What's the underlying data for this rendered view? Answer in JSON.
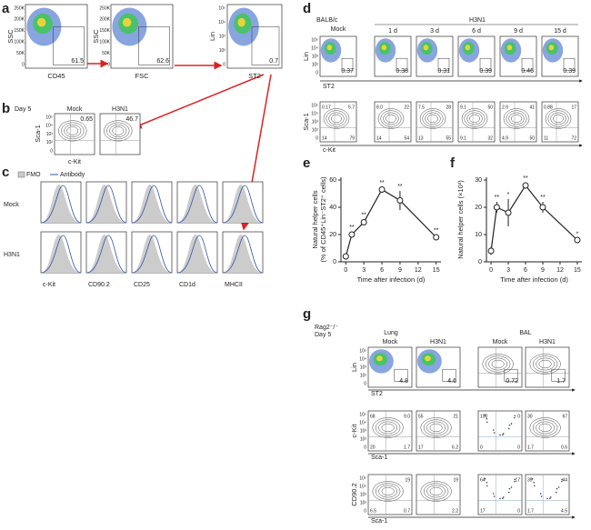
{
  "panel_letters": [
    "a",
    "b",
    "c",
    "d",
    "e",
    "f",
    "g"
  ],
  "a": {
    "ticks": [
      "250K",
      "200K",
      "150K",
      "100K",
      "50K",
      "0"
    ],
    "log_ticks": [
      "10⁵",
      "10⁴",
      "10³",
      "10²",
      "0"
    ],
    "plots": [
      {
        "y_label": "SSC",
        "x_label": "CD45",
        "gate": "61.5"
      },
      {
        "y_label": "SSC",
        "x_label": "FSC",
        "gate": "62.6"
      },
      {
        "y_label": "Lin",
        "x_label": "ST2",
        "gate": "0.7"
      }
    ]
  },
  "b": {
    "day": "Day 5",
    "y_label": "Sca-1",
    "x_label": "c-Kit",
    "plots": [
      {
        "title": "Mock",
        "gate": "0.65"
      },
      {
        "title": "H3N1",
        "gate": "46.7"
      }
    ]
  },
  "c": {
    "legend": [
      "FMO",
      "Antibody"
    ],
    "rows": [
      "Mock",
      "H3N1"
    ],
    "columns": [
      "c-Kit",
      "CD90.2",
      "CD25",
      "CD1d",
      "MHCII"
    ]
  },
  "d": {
    "strain": "BALB/c",
    "groups": [
      "Mock",
      "H3N1"
    ],
    "times": [
      "1 d",
      "3 d",
      "6 d",
      "9 d",
      "15 d"
    ],
    "row1": {
      "y_label": "Lin",
      "x_label": "ST2",
      "gates": [
        "0.37",
        "0.38",
        "0.31",
        "0.39",
        "0.46",
        "0.39"
      ]
    },
    "row2": {
      "y_label": "Sca-1",
      "x_label": "c-Kit",
      "quadrants": [
        [
          "0.17",
          "5.7",
          "14",
          "79"
        ],
        [
          "8.0",
          "22",
          "14",
          "54"
        ],
        [
          "7.5",
          "28",
          "13",
          "55"
        ],
        [
          "9.1",
          "50",
          "9.1",
          "32"
        ],
        [
          "2.9",
          "41",
          "4.9",
          "50"
        ],
        [
          "0.88",
          "17",
          "11",
          "72"
        ]
      ]
    }
  },
  "chart_data": [
    {
      "type": "line",
      "x_label": "Time after infection (d)",
      "y_label": [
        "Natural helper cells",
        "(% of CD45⁺Lin⁻ST2⁺ cells)"
      ],
      "x": [
        0,
        1,
        3,
        6,
        9,
        15
      ],
      "values": [
        4,
        20,
        29,
        53,
        45,
        18
      ],
      "errors": [
        1,
        2,
        2,
        1.5,
        7,
        1.5
      ],
      "significance": [
        null,
        "**",
        "**",
        "**",
        "**",
        "**"
      ],
      "xlim": [
        -0.8,
        15.8
      ],
      "xticks": [
        0,
        3,
        6,
        9,
        12,
        15
      ],
      "ylim": [
        0,
        62
      ],
      "yticks": [
        0,
        20,
        40,
        60
      ],
      "color": "#222"
    },
    {
      "type": "line",
      "x_label": "Time after infection (d)",
      "y_label": [
        "Natural helper cells (×10³)"
      ],
      "x": [
        0,
        1,
        3,
        6,
        9,
        15
      ],
      "values": [
        4,
        20,
        18,
        28,
        20,
        8
      ],
      "errors": [
        1.5,
        2,
        5,
        1,
        2,
        0.5
      ],
      "significance": [
        null,
        "**",
        "*",
        "**",
        "**",
        "*"
      ],
      "xlim": [
        -0.8,
        15.8
      ],
      "xticks": [
        0,
        3,
        6,
        9,
        12,
        15
      ],
      "ylim": [
        0,
        31
      ],
      "yticks": [
        0,
        10,
        20,
        30
      ],
      "color": "#222"
    }
  ],
  "g": {
    "strain": "Rag2⁻/⁻",
    "day": "Day 5",
    "tissues": [
      "Lung",
      "BAL"
    ],
    "groups": [
      "Mock",
      "H3N1",
      "Mock",
      "H3N1"
    ],
    "rows": [
      {
        "y_label": "Lin",
        "x_label": "ST2",
        "gates": [
          "4.8",
          "4.6",
          "0.72",
          "1.7"
        ]
      },
      {
        "y_label": "c-Kit",
        "x_label": "Sca-1",
        "quadrants": [
          [
            "68",
            "9.0",
            "20",
            "1.7"
          ],
          [
            "55",
            "21",
            "17",
            "6.2"
          ],
          [
            "100",
            "0",
            "0",
            "0"
          ],
          [
            "30",
            "67",
            "1.7",
            "0.6"
          ]
        ]
      },
      {
        "y_label": "CD90.2",
        "x_label": "Sca-1",
        "quadrants": [
          [
            null,
            "19",
            "6.5",
            "0.7"
          ],
          [
            null,
            "19",
            null,
            "2.2"
          ],
          [
            "64",
            "17",
            "17",
            "0"
          ],
          [
            "39",
            "44",
            "1.7",
            "4.5"
          ]
        ]
      }
    ]
  }
}
